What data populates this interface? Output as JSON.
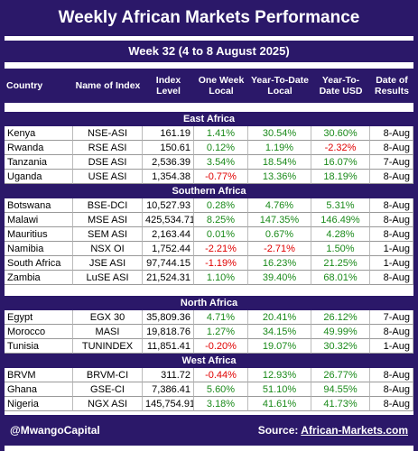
{
  "header": {
    "title": "Weekly African Markets Performance",
    "subtitle": "Week 32 (4 to 8 August 2025)"
  },
  "table": {
    "columns": [
      "Country",
      "Name of Index",
      "Index Level",
      "One Week Local",
      "Year-To-Date Local",
      "Year-To-Date USD",
      "Date of Results"
    ],
    "regions": [
      {
        "name": "East Africa",
        "rows": [
          [
            "Kenya",
            "NSE-ASI",
            "161.19",
            "1.41%",
            "30.54%",
            "30.60%",
            "8-Aug"
          ],
          [
            "Rwanda",
            "RSE ASI",
            "150.61",
            "0.12%",
            "1.19%",
            "-2.32%",
            "8-Aug"
          ],
          [
            "Tanzania",
            "DSE ASI",
            "2,536.39",
            "3.54%",
            "18.54%",
            "16.07%",
            "7-Aug"
          ],
          [
            "Uganda",
            "USE ASI",
            "1,354.38",
            "-0.77%",
            "13.36%",
            "18.19%",
            "8-Aug"
          ]
        ]
      },
      {
        "name": "Southern Africa",
        "rows": [
          [
            "Botswana",
            "BSE-DCI",
            "10,527.93",
            "0.28%",
            "4.76%",
            "5.31%",
            "8-Aug"
          ],
          [
            "Malawi",
            "MSE ASI",
            "425,534.71",
            "8.25%",
            "147.35%",
            "146.49%",
            "8-Aug"
          ],
          [
            "Mauritius",
            "SEM ASI",
            "2,163.44",
            "0.01%",
            "0.67%",
            "4.28%",
            "8-Aug"
          ],
          [
            "Namibia",
            "NSX OI",
            "1,752.44",
            "-2.21%",
            "-2.71%",
            "1.50%",
            "1-Aug"
          ],
          [
            "South Africa",
            "JSE ASI",
            "97,744.15",
            "-1.19%",
            "16.23%",
            "21.25%",
            "1-Aug"
          ],
          [
            "Zambia",
            "LuSE ASI",
            "21,524.31",
            "1.10%",
            "39.40%",
            "68.01%",
            "8-Aug"
          ]
        ]
      },
      {
        "name": "North Africa",
        "rows": [
          [
            "Egypt",
            "EGX 30",
            "35,809.36",
            "4.71%",
            "20.41%",
            "26.12%",
            "7-Aug"
          ],
          [
            "Morocco",
            "MASI",
            "19,818.76",
            "1.27%",
            "34.15%",
            "49.99%",
            "8-Aug"
          ],
          [
            "Tunisia",
            "TUNINDEX",
            "11,851.41",
            "-0.20%",
            "19.07%",
            "30.32%",
            "1-Aug"
          ]
        ]
      },
      {
        "name": "West Africa",
        "rows": [
          [
            "BRVM",
            "BRVM-CI",
            "311.72",
            "-0.44%",
            "12.93%",
            "26.77%",
            "8-Aug"
          ],
          [
            "Ghana",
            "GSE-CI",
            "7,386.41",
            "5.60%",
            "51.10%",
            "94.55%",
            "8-Aug"
          ],
          [
            "Nigeria",
            "NGX ASI",
            "145,754.91",
            "3.18%",
            "41.61%",
            "41.73%",
            "8-Aug"
          ]
        ]
      }
    ]
  },
  "footer": {
    "handle": "@MwangoCapital",
    "source_label": "Source:",
    "source_link": "African-Markets.com"
  }
}
